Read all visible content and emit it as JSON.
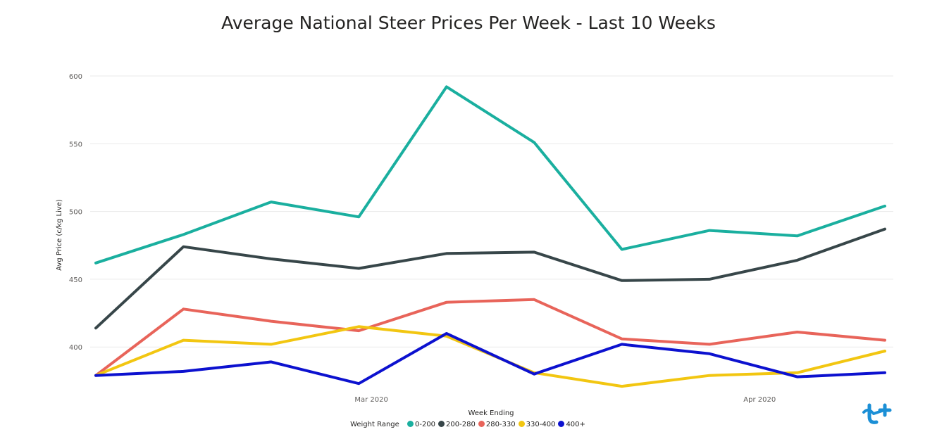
{
  "chart_data": {
    "type": "line",
    "title": "Average National Steer Prices Per Week - Last 10 Weeks",
    "xlabel": "Week Ending",
    "ylabel": "Avg Price (c/kg Live)",
    "ylim": [
      370,
      600
    ],
    "yticks": [
      400,
      450,
      500,
      550,
      600
    ],
    "xlim": [
      "2020-02-08",
      "2020-04-11"
    ],
    "x": [
      "2020-02-08",
      "2020-02-15",
      "2020-02-22",
      "2020-02-29",
      "2020-03-07",
      "2020-03-14",
      "2020-03-21",
      "2020-03-28",
      "2020-04-04",
      "2020-04-11"
    ],
    "xticks": [
      {
        "date": "2020-03-01",
        "label": "Mar 2020"
      },
      {
        "date": "2020-04-01",
        "label": "Apr 2020"
      }
    ],
    "grid": true,
    "legend_title": "Weight Range",
    "legend_position": "bottom-center",
    "series": [
      {
        "name": "0-200",
        "color": "#1aaf9f",
        "values": [
          462,
          483,
          507,
          496,
          592,
          551,
          472,
          486,
          482,
          504
        ]
      },
      {
        "name": "200-280",
        "color": "#374649",
        "values": [
          414,
          474,
          465,
          458,
          469,
          470,
          449,
          450,
          464,
          487
        ]
      },
      {
        "name": "280-330",
        "color": "#e8645a",
        "values": [
          379,
          428,
          419,
          412,
          433,
          435,
          406,
          402,
          411,
          405
        ]
      },
      {
        "name": "330-400",
        "color": "#f2c611",
        "values": [
          379,
          405,
          402,
          415,
          408,
          381,
          371,
          379,
          381,
          397
        ]
      },
      {
        "name": "400+",
        "color": "#0c11cf",
        "values": [
          379,
          382,
          389,
          373,
          410,
          380,
          402,
          395,
          378,
          381
        ]
      }
    ]
  }
}
